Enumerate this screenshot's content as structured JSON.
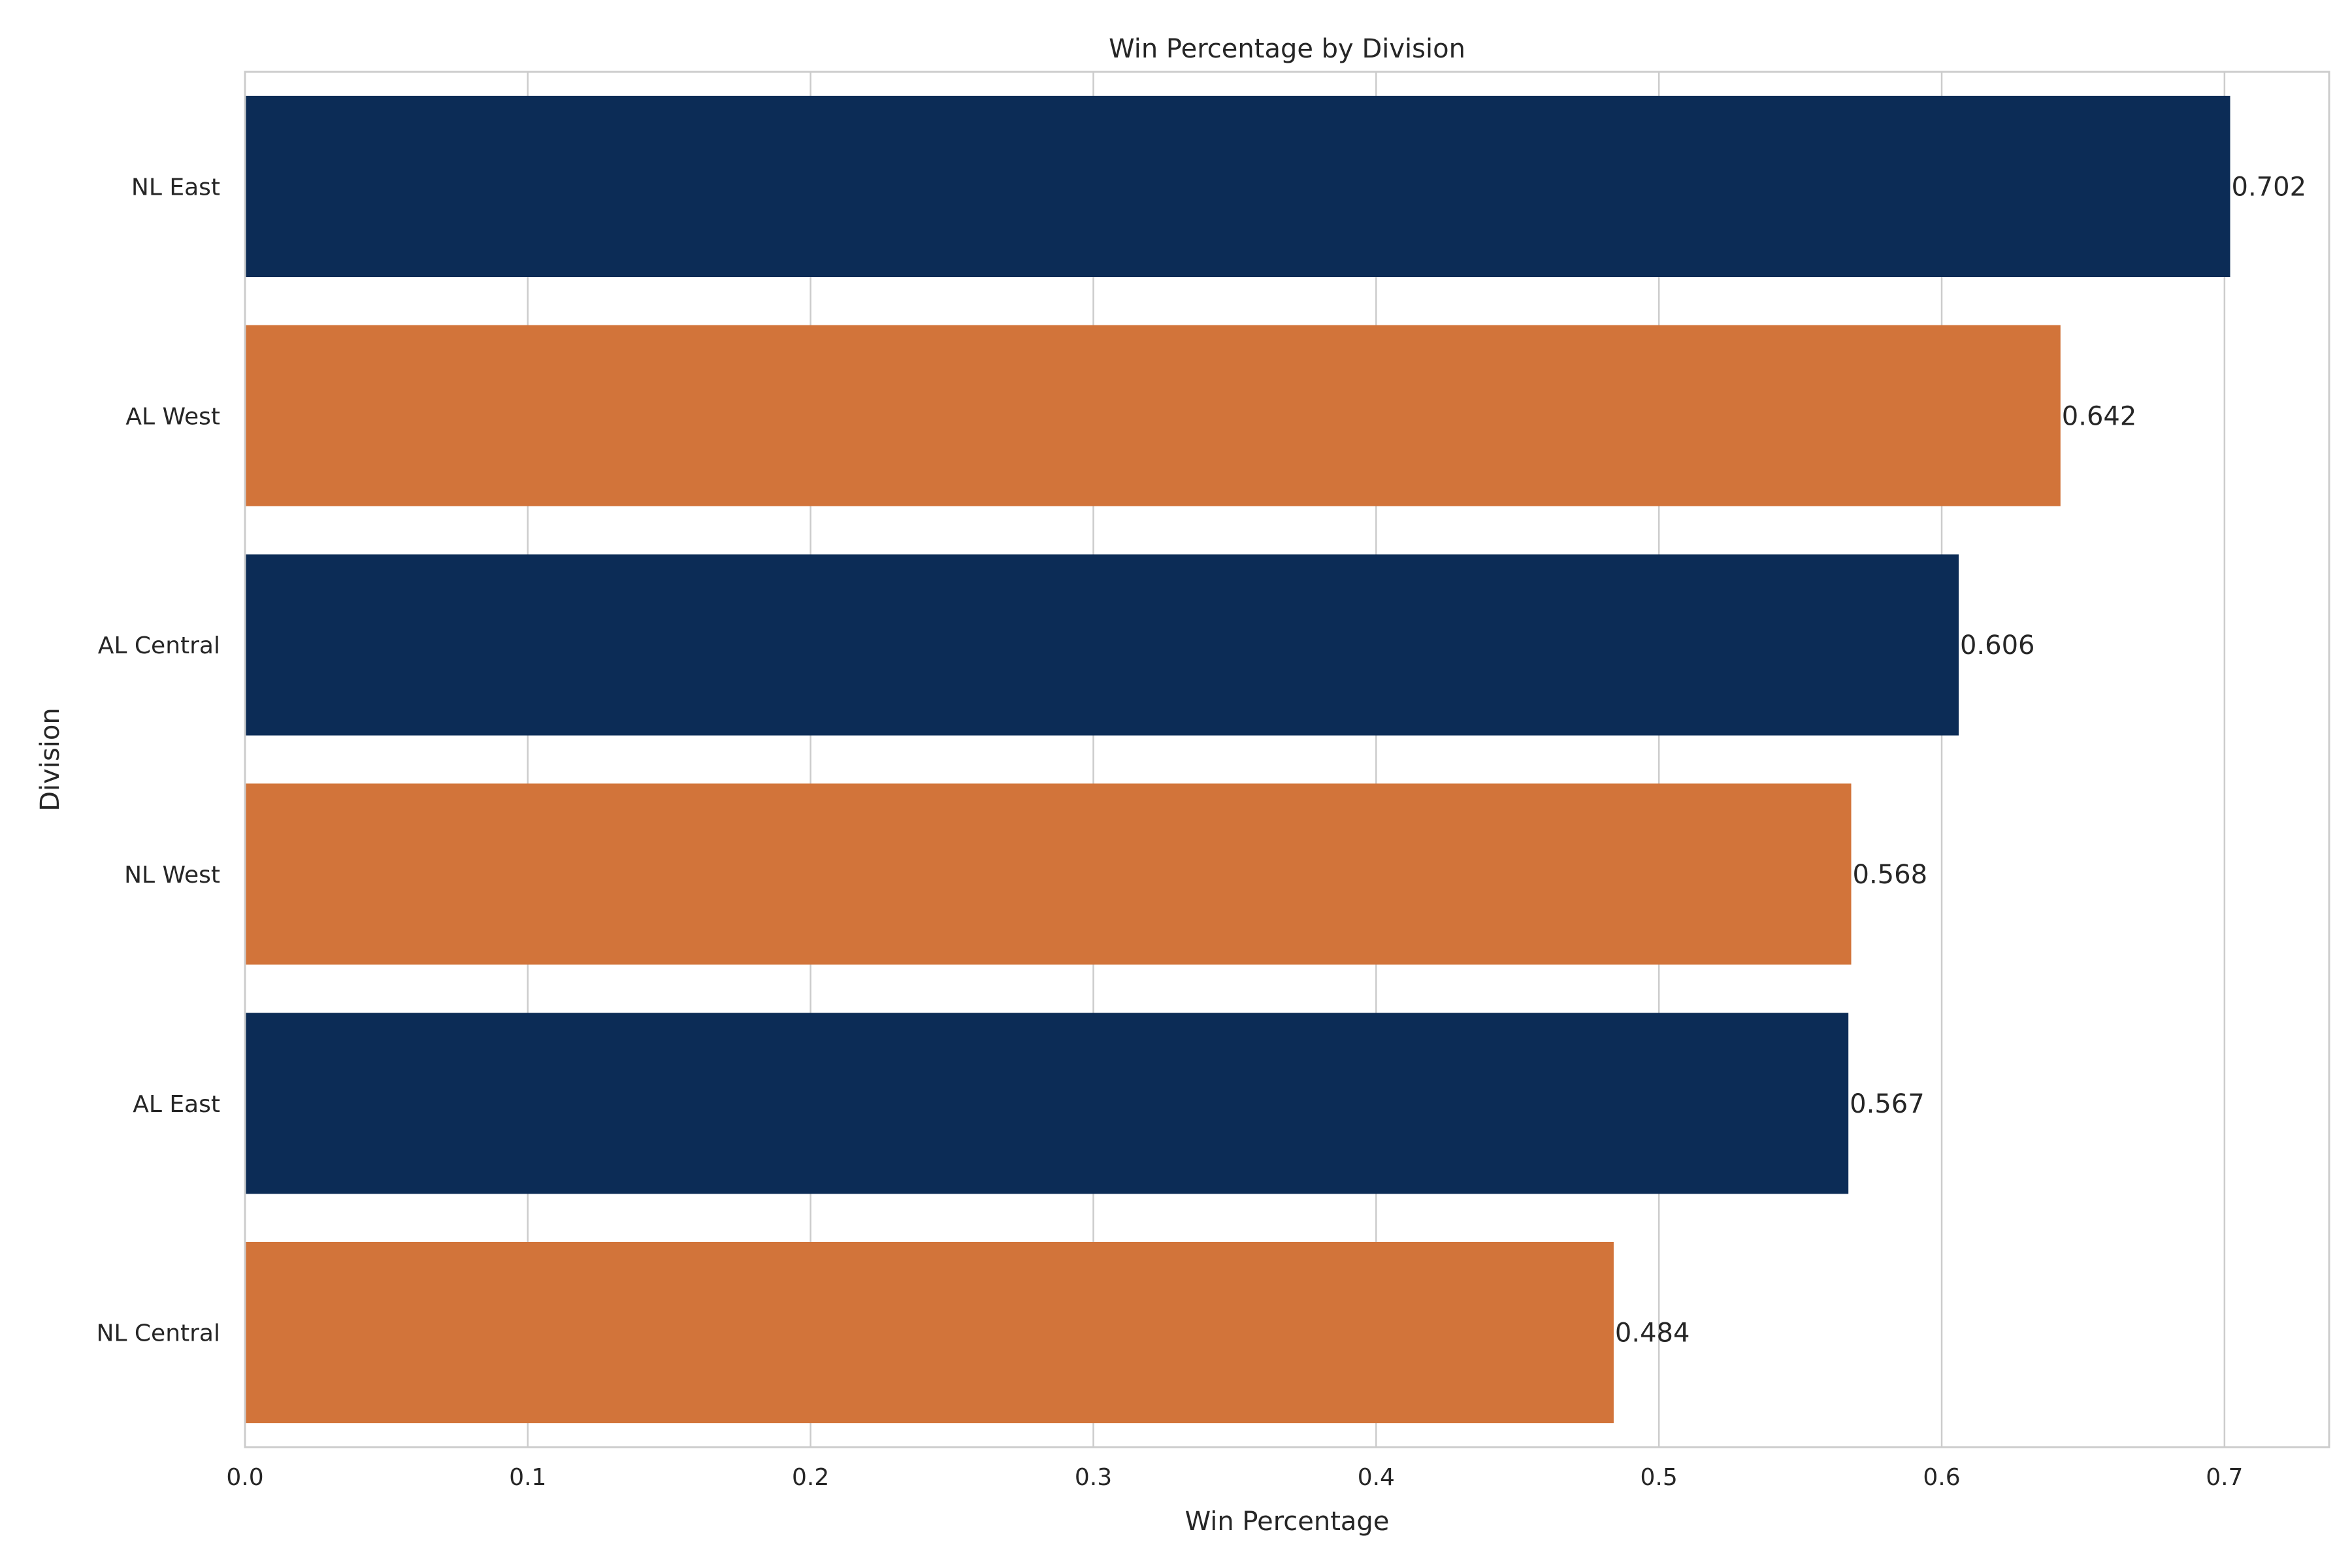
{
  "chart_data": {
    "type": "bar",
    "orientation": "horizontal",
    "title": "Win Percentage by Division",
    "xlabel": "Win Percentage",
    "ylabel": "Division",
    "categories": [
      "NL East",
      "AL West",
      "AL Central",
      "NL West",
      "AL East",
      "NL Central"
    ],
    "values": [
      0.702,
      0.642,
      0.606,
      0.568,
      0.567,
      0.484
    ],
    "value_labels": [
      "0.702",
      "0.642",
      "0.606",
      "0.568",
      "0.567",
      "0.484"
    ],
    "bar_colors": [
      "#0c2c56",
      "#d2743a",
      "#0c2c56",
      "#d2743a",
      "#0c2c56",
      "#d2743a"
    ],
    "xlim": [
      0,
      0.737
    ],
    "xticks": [
      0.0,
      0.1,
      0.2,
      0.3,
      0.4,
      0.5,
      0.6,
      0.7
    ],
    "xtick_labels": [
      "0.0",
      "0.1",
      "0.2",
      "0.3",
      "0.4",
      "0.5",
      "0.6",
      "0.7"
    ],
    "grid": true,
    "legend": "none"
  }
}
